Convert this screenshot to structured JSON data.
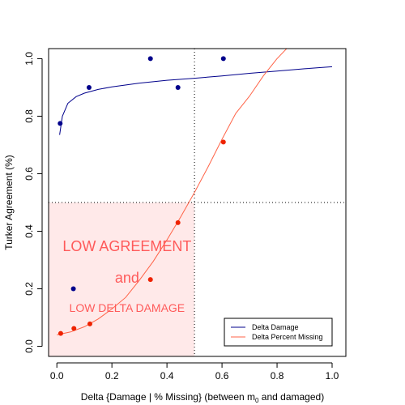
{
  "chart_data": {
    "type": "scatter",
    "title": "",
    "xlabel_pre": "Delta {Damage | % Missing} (between m",
    "xlabel_sub": "0",
    "xlabel_post": " and damaged)",
    "ylabel": "Turker Agreement (%)",
    "xlim": [
      -0.03,
      1.05
    ],
    "ylim": [
      -0.035,
      1.035
    ],
    "xticks": [
      0.0,
      0.2,
      0.4,
      0.6,
      0.8,
      1.0
    ],
    "xtick_labels": [
      "0.0",
      "0.2",
      "0.4",
      "0.6",
      "0.8",
      "1.0"
    ],
    "yticks": [
      0.0,
      0.2,
      0.4,
      0.6,
      0.8,
      1.0
    ],
    "ytick_labels": [
      "0.0",
      "0.2",
      "0.4",
      "0.6",
      "0.8",
      "1.0"
    ],
    "grid": false,
    "legend_position": "bottom-right",
    "series": [
      {
        "name": "Delta Damage",
        "color": "#00008b",
        "points": [
          [
            0.012,
            0.775
          ],
          [
            0.06,
            0.2
          ],
          [
            0.117,
            0.9
          ],
          [
            0.34,
            1.0
          ],
          [
            0.44,
            0.9
          ],
          [
            0.605,
            1.0
          ]
        ],
        "fit_curve": [
          [
            0.01,
            0.735
          ],
          [
            0.02,
            0.8
          ],
          [
            0.04,
            0.845
          ],
          [
            0.07,
            0.868
          ],
          [
            0.1,
            0.88
          ],
          [
            0.15,
            0.893
          ],
          [
            0.2,
            0.902
          ],
          [
            0.3,
            0.915
          ],
          [
            0.4,
            0.925
          ],
          [
            0.5,
            0.932
          ],
          [
            0.6,
            0.94
          ],
          [
            0.7,
            0.949
          ],
          [
            0.8,
            0.957
          ],
          [
            0.9,
            0.965
          ],
          [
            1.0,
            0.972
          ]
        ]
      },
      {
        "name": "Delta Percent Missing",
        "color": "#ff6347",
        "point_color": "#ee2200",
        "points": [
          [
            0.014,
            0.045
          ],
          [
            0.062,
            0.062
          ],
          [
            0.12,
            0.078
          ],
          [
            0.34,
            0.232
          ],
          [
            0.44,
            0.43
          ],
          [
            0.605,
            0.71
          ]
        ],
        "fit_curve": [
          [
            0.0,
            0.04
          ],
          [
            0.05,
            0.05
          ],
          [
            0.1,
            0.068
          ],
          [
            0.15,
            0.095
          ],
          [
            0.2,
            0.13
          ],
          [
            0.25,
            0.17
          ],
          [
            0.3,
            0.23
          ],
          [
            0.35,
            0.295
          ],
          [
            0.4,
            0.37
          ],
          [
            0.45,
            0.45
          ],
          [
            0.5,
            0.535
          ],
          [
            0.55,
            0.625
          ],
          [
            0.6,
            0.72
          ],
          [
            0.65,
            0.81
          ],
          [
            0.7,
            0.87
          ],
          [
            0.75,
            0.94
          ],
          [
            0.8,
            1.0
          ],
          [
            0.85,
            1.05
          ]
        ]
      }
    ],
    "reference_lines": [
      {
        "orientation": "vertical",
        "value": 0.5,
        "style": "dotted"
      },
      {
        "orientation": "horizontal",
        "value": 0.5,
        "style": "dotted"
      }
    ],
    "shaded_region": {
      "x": [
        -0.03,
        0.5
      ],
      "y": [
        -0.035,
        0.5
      ],
      "color": "#ffe9e9"
    },
    "annotations": [
      {
        "text": "LOW AGREEMENT",
        "x": 0.255,
        "y": 0.345,
        "color": "#ff5a5a",
        "size": "large"
      },
      {
        "text": "and",
        "x": 0.255,
        "y": 0.235,
        "color": "#ff5a5a",
        "size": "large"
      },
      {
        "text": "LOW DELTA DAMAGE",
        "x": 0.255,
        "y": 0.13,
        "color": "#ff5a5a",
        "size": "medium"
      }
    ]
  }
}
